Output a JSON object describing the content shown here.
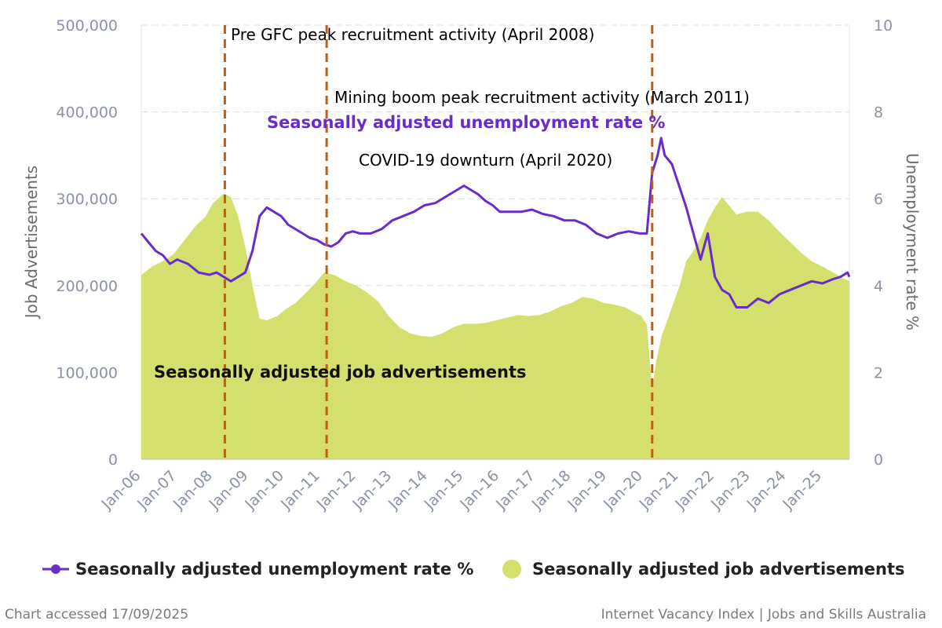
{
  "chart_data": {
    "type": "line",
    "x_axis": {
      "tick_labels": [
        "Jan-06",
        "Jan-07",
        "Jan-08",
        "Jan-09",
        "Jan-10",
        "Jan-11",
        "Jan-12",
        "Jan-13",
        "Jan-14",
        "Jan-15",
        "Jan-16",
        "Jan-17",
        "Jan-18",
        "Jan-19",
        "Jan-20",
        "Jan-21",
        "Jan-22",
        "Jan-23",
        "Jan-24",
        "Jan-25"
      ],
      "range": [
        2006.0,
        2025.75
      ]
    },
    "y_left": {
      "label": "Job Advertisements",
      "range": [
        0,
        500000
      ],
      "ticks": [
        0,
        100000,
        200000,
        300000,
        400000,
        500000
      ],
      "tick_labels": [
        "0",
        "100,000",
        "200,000",
        "300,000",
        "400,000",
        "500,000"
      ]
    },
    "y_right": {
      "label": "Unemployment rate %",
      "range": [
        0,
        10
      ],
      "ticks": [
        0,
        2,
        4,
        6,
        8,
        10
      ],
      "tick_labels": [
        "0",
        "2",
        "4",
        "6",
        "8",
        "10"
      ]
    },
    "series": [
      {
        "name": "Seasonally adjusted job advertisements",
        "type": "area",
        "axis": "left",
        "color": "#d4df6e",
        "points": [
          [
            2006.0,
            212000
          ],
          [
            2006.3,
            222000
          ],
          [
            2006.6,
            228000
          ],
          [
            2006.9,
            236000
          ],
          [
            2007.2,
            252000
          ],
          [
            2007.5,
            268000
          ],
          [
            2007.8,
            280000
          ],
          [
            2008.0,
            295000
          ],
          [
            2008.3,
            306000
          ],
          [
            2008.5,
            302000
          ],
          [
            2008.7,
            280000
          ],
          [
            2008.9,
            245000
          ],
          [
            2009.1,
            200000
          ],
          [
            2009.3,
            162000
          ],
          [
            2009.5,
            160000
          ],
          [
            2009.8,
            165000
          ],
          [
            2010.0,
            172000
          ],
          [
            2010.3,
            180000
          ],
          [
            2010.6,
            192000
          ],
          [
            2010.9,
            205000
          ],
          [
            2011.1,
            215000
          ],
          [
            2011.4,
            212000
          ],
          [
            2011.7,
            205000
          ],
          [
            2012.0,
            200000
          ],
          [
            2012.3,
            192000
          ],
          [
            2012.6,
            182000
          ],
          [
            2012.9,
            165000
          ],
          [
            2013.2,
            152000
          ],
          [
            2013.5,
            145000
          ],
          [
            2013.8,
            142000
          ],
          [
            2014.1,
            141000
          ],
          [
            2014.4,
            145000
          ],
          [
            2014.7,
            152000
          ],
          [
            2015.0,
            156000
          ],
          [
            2015.3,
            156000
          ],
          [
            2015.6,
            157000
          ],
          [
            2015.9,
            160000
          ],
          [
            2016.2,
            163000
          ],
          [
            2016.5,
            166000
          ],
          [
            2016.8,
            165000
          ],
          [
            2017.1,
            166000
          ],
          [
            2017.4,
            170000
          ],
          [
            2017.7,
            176000
          ],
          [
            2018.0,
            180000
          ],
          [
            2018.3,
            187000
          ],
          [
            2018.6,
            185000
          ],
          [
            2018.9,
            180000
          ],
          [
            2019.2,
            178000
          ],
          [
            2019.5,
            175000
          ],
          [
            2019.8,
            168000
          ],
          [
            2019.95,
            165000
          ],
          [
            2020.1,
            155000
          ],
          [
            2020.25,
            82000
          ],
          [
            2020.35,
            110000
          ],
          [
            2020.5,
            140000
          ],
          [
            2020.8,
            175000
          ],
          [
            2021.0,
            198000
          ],
          [
            2021.2,
            228000
          ],
          [
            2021.4,
            240000
          ],
          [
            2021.6,
            255000
          ],
          [
            2021.8,
            275000
          ],
          [
            2022.0,
            290000
          ],
          [
            2022.2,
            302000
          ],
          [
            2022.4,
            292000
          ],
          [
            2022.6,
            282000
          ],
          [
            2022.9,
            285000
          ],
          [
            2023.2,
            285000
          ],
          [
            2023.5,
            275000
          ],
          [
            2023.8,
            262000
          ],
          [
            2024.1,
            250000
          ],
          [
            2024.4,
            238000
          ],
          [
            2024.7,
            228000
          ],
          [
            2025.0,
            222000
          ],
          [
            2025.3,
            215000
          ],
          [
            2025.6,
            208000
          ],
          [
            2025.75,
            205000
          ]
        ]
      },
      {
        "name": "Seasonally adjusted unemployment rate %",
        "type": "line",
        "axis": "right",
        "color": "#6a2cc9",
        "points": [
          [
            2006.0,
            5.2
          ],
          [
            2006.2,
            5.0
          ],
          [
            2006.4,
            4.8
          ],
          [
            2006.6,
            4.7
          ],
          [
            2006.8,
            4.5
          ],
          [
            2007.0,
            4.6
          ],
          [
            2007.3,
            4.5
          ],
          [
            2007.6,
            4.3
          ],
          [
            2007.9,
            4.25
          ],
          [
            2008.1,
            4.3
          ],
          [
            2008.3,
            4.2
          ],
          [
            2008.5,
            4.1
          ],
          [
            2008.7,
            4.2
          ],
          [
            2008.9,
            4.3
          ],
          [
            2009.1,
            4.8
          ],
          [
            2009.3,
            5.6
          ],
          [
            2009.5,
            5.8
          ],
          [
            2009.7,
            5.7
          ],
          [
            2009.9,
            5.6
          ],
          [
            2010.1,
            5.4
          ],
          [
            2010.3,
            5.3
          ],
          [
            2010.5,
            5.2
          ],
          [
            2010.7,
            5.1
          ],
          [
            2010.9,
            5.05
          ],
          [
            2011.1,
            4.95
          ],
          [
            2011.3,
            4.9
          ],
          [
            2011.5,
            5.0
          ],
          [
            2011.7,
            5.2
          ],
          [
            2011.9,
            5.25
          ],
          [
            2012.1,
            5.2
          ],
          [
            2012.4,
            5.2
          ],
          [
            2012.7,
            5.3
          ],
          [
            2013.0,
            5.5
          ],
          [
            2013.3,
            5.6
          ],
          [
            2013.6,
            5.7
          ],
          [
            2013.9,
            5.85
          ],
          [
            2014.2,
            5.9
          ],
          [
            2014.5,
            6.05
          ],
          [
            2014.8,
            6.2
          ],
          [
            2015.0,
            6.3
          ],
          [
            2015.2,
            6.2
          ],
          [
            2015.4,
            6.1
          ],
          [
            2015.6,
            5.95
          ],
          [
            2015.8,
            5.85
          ],
          [
            2016.0,
            5.7
          ],
          [
            2016.3,
            5.7
          ],
          [
            2016.6,
            5.7
          ],
          [
            2016.9,
            5.75
          ],
          [
            2017.2,
            5.65
          ],
          [
            2017.5,
            5.6
          ],
          [
            2017.8,
            5.5
          ],
          [
            2018.1,
            5.5
          ],
          [
            2018.4,
            5.4
          ],
          [
            2018.7,
            5.2
          ],
          [
            2019.0,
            5.1
          ],
          [
            2019.3,
            5.2
          ],
          [
            2019.6,
            5.25
          ],
          [
            2019.9,
            5.2
          ],
          [
            2020.1,
            5.2
          ],
          [
            2020.25,
            6.6
          ],
          [
            2020.4,
            7.0
          ],
          [
            2020.5,
            7.4
          ],
          [
            2020.6,
            7.0
          ],
          [
            2020.8,
            6.8
          ],
          [
            2021.0,
            6.3
          ],
          [
            2021.2,
            5.8
          ],
          [
            2021.4,
            5.2
          ],
          [
            2021.6,
            4.6
          ],
          [
            2021.8,
            5.2
          ],
          [
            2022.0,
            4.2
          ],
          [
            2022.2,
            3.9
          ],
          [
            2022.4,
            3.8
          ],
          [
            2022.6,
            3.5
          ],
          [
            2022.9,
            3.5
          ],
          [
            2023.2,
            3.7
          ],
          [
            2023.5,
            3.6
          ],
          [
            2023.8,
            3.8
          ],
          [
            2024.1,
            3.9
          ],
          [
            2024.4,
            4.0
          ],
          [
            2024.7,
            4.1
          ],
          [
            2025.0,
            4.05
          ],
          [
            2025.3,
            4.15
          ],
          [
            2025.5,
            4.2
          ],
          [
            2025.7,
            4.3
          ],
          [
            2025.75,
            4.2
          ]
        ]
      }
    ],
    "markers": [
      {
        "x": 2008.33,
        "label": "Pre GFC peak recruitment activity (April 2008)"
      },
      {
        "x": 2011.17,
        "label": "Mining boom peak recruitment activity (March 2011)"
      },
      {
        "x": 2020.25,
        "label": "COVID-19 downturn (April 2020)"
      }
    ],
    "series_labels": {
      "unemployment": "Seasonally adjusted unemployment rate %",
      "job_ads": "Seasonally adjusted job advertisements"
    },
    "legend_placement": "bottom"
  },
  "footer": {
    "left": "Chart accessed 17/09/2025",
    "right": "Internet Vacancy Index | Jobs and Skills Australia"
  },
  "colors": {
    "marker": "#c55a11",
    "grid": "#dddddd",
    "area": "#d4df6e",
    "line": "#6a2cc9"
  }
}
